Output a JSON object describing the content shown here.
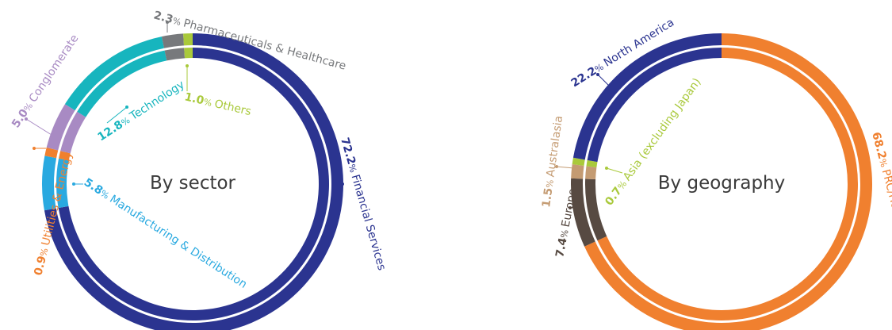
{
  "chart_data": [
    {
      "type": "pie",
      "title": "By sector",
      "slices": [
        {
          "label": "Financial Services",
          "value": 72.2,
          "pct": "72.2",
          "color": "#2B3490"
        },
        {
          "label": "Manufacturing & Distribution",
          "value": 5.8,
          "pct": "5.8",
          "color": "#29A9E0"
        },
        {
          "label": "Utilities & Energy",
          "value": 0.9,
          "pct": "0.9",
          "color": "#F0802F"
        },
        {
          "label": "Conglomerate",
          "value": 5.0,
          "pct": "5.0",
          "color": "#A88AC3"
        },
        {
          "label": "Technology",
          "value": 12.8,
          "pct": "12.8",
          "color": "#17B5BE"
        },
        {
          "label": "Pharmaceuticals & Healthcare",
          "value": 2.3,
          "pct": "2.3",
          "color": "#77797C"
        },
        {
          "label": "Others",
          "value": 1.0,
          "pct": "1.0",
          "color": "#A9C93B"
        }
      ]
    },
    {
      "type": "pie",
      "title": "By geography",
      "slices": [
        {
          "label": "PRC/Hong Kong",
          "value": 68.2,
          "pct": "68.2",
          "color": "#F0802F"
        },
        {
          "label": "Europe",
          "value": 7.4,
          "pct": "7.4",
          "color": "#574A42"
        },
        {
          "label": "Australasia",
          "value": 1.5,
          "pct": "1.5",
          "color": "#C49B72"
        },
        {
          "label": "Asia (excluding Japan)",
          "value": 0.7,
          "pct": "0.7",
          "color": "#A9C93B"
        },
        {
          "label": "North America",
          "value": 22.2,
          "pct": "22.2",
          "color": "#2B3490"
        }
      ]
    }
  ],
  "percent_sign": "%"
}
